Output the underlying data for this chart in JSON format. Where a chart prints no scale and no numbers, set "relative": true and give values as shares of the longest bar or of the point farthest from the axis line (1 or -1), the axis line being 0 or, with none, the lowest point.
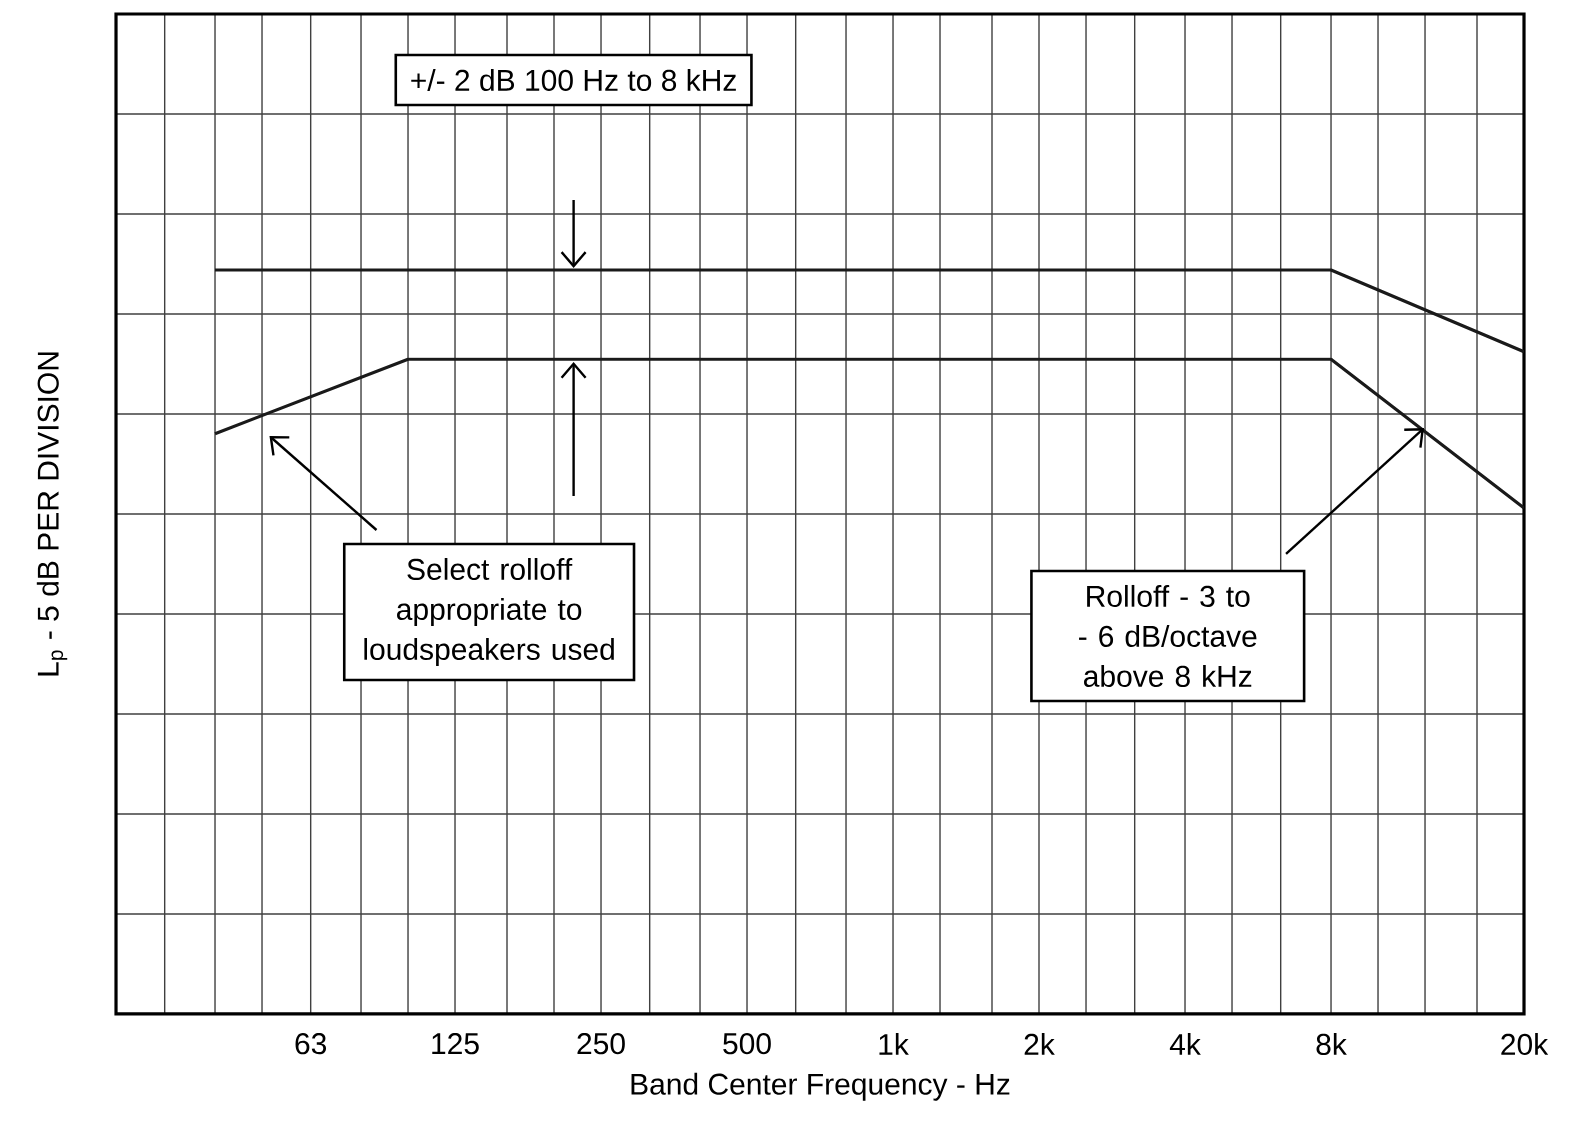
{
  "chart_data": {
    "type": "line",
    "xlabel": "Band Center Frequency - Hz",
    "ylabel": "L$_{p}$ - 5 dB PER DIVISION",
    "relative": true,
    "log": "x",
    "grid": true,
    "marker": "none",
    "line_style": "solid",
    "tick_labels": "x",
    "xlim": [
      25,
      20000
    ],
    "xticks": [
      {
        "value": 25,
        "label": null
      },
      {
        "value": 31.5,
        "label": null
      },
      {
        "value": 40,
        "label": null
      },
      {
        "value": 50,
        "label": null
      },
      63,
      {
        "value": 80,
        "label": null
      },
      {
        "value": 100,
        "label": null
      },
      125,
      {
        "value": 160,
        "label": null
      },
      {
        "value": 200,
        "label": null
      },
      250,
      {
        "value": 315,
        "label": null
      },
      {
        "value": 400,
        "label": null
      },
      500,
      {
        "value": 630,
        "label": null
      },
      {
        "value": 800,
        "label": null
      },
      {
        "value": 1000,
        "label": "1k"
      },
      {
        "value": 1250,
        "label": null
      },
      {
        "value": 1600,
        "label": null
      },
      {
        "value": 2000,
        "label": "2k"
      },
      {
        "value": 2500,
        "label": null
      },
      {
        "value": 3150,
        "label": null
      },
      {
        "value": 4000,
        "label": "4k"
      },
      {
        "value": 5000,
        "label": null
      },
      {
        "value": 6300,
        "label": null
      },
      {
        "value": 8000,
        "label": "8k"
      },
      {
        "value": 10000,
        "label": null
      },
      {
        "value": 12500,
        "label": null
      },
      {
        "value": 16000,
        "label": null
      },
      {
        "value": 20000,
        "label": "20k"
      }
    ],
    "series": [
      {
        "color": "#1a1a1a",
        "x": [
          40,
          8000,
          20000
        ],
        "values": [
          1,
          1,
          0.89
        ]
      },
      {
        "color": "#1a1a1a",
        "x": [
          40,
          100,
          8000,
          20000
        ],
        "values": [
          0.78,
          0.88,
          0.88,
          0.68
        ]
      }
    ],
    "annotations": [
      "+/- 2 dB 100 Hz to 8 kHz",
      "Select rolloff appropriate to loudspeakers used",
      "Rolloff - 3 to - 6 dB/octave above 8 kHz"
    ]
  }
}
